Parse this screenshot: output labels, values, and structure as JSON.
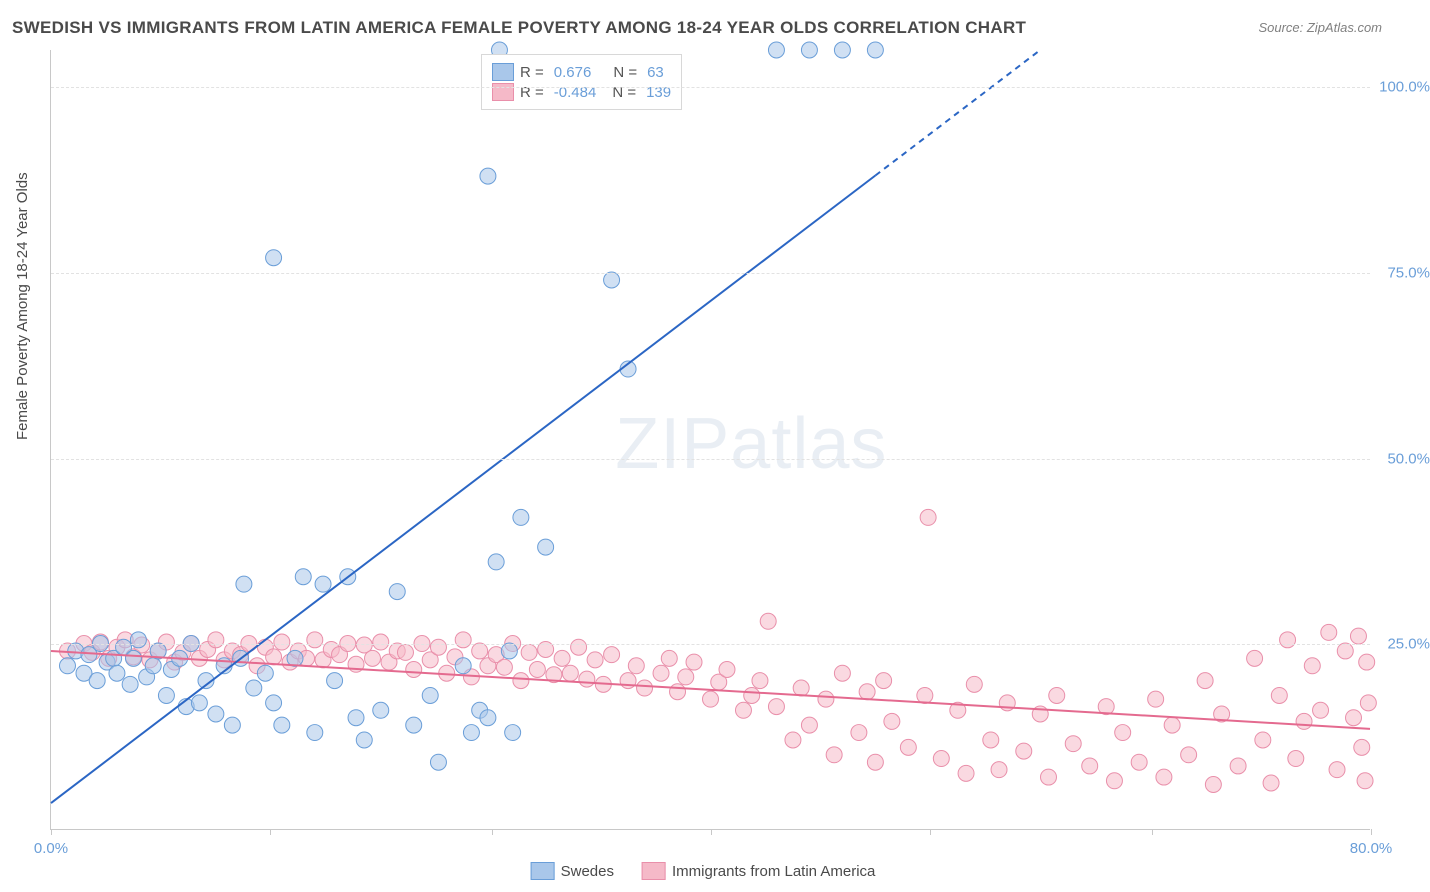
{
  "title": "SWEDISH VS IMMIGRANTS FROM LATIN AMERICA FEMALE POVERTY AMONG 18-24 YEAR OLDS CORRELATION CHART",
  "source": "Source: ZipAtlas.com",
  "watermark": "ZIPatlas",
  "y_axis_label": "Female Poverty Among 18-24 Year Olds",
  "chart": {
    "type": "scatter",
    "background_color": "#ffffff",
    "grid_color": "#e2e2e2",
    "axis_color": "#c8c8c8",
    "tick_label_color": "#6a9ed8",
    "text_color": "#4a4a4a",
    "title_fontsize": 17,
    "label_fontsize": 15,
    "tick_fontsize": 15,
    "xlim": [
      0,
      80
    ],
    "ylim": [
      0,
      105
    ],
    "x_ticks": [
      0,
      13.3,
      26.7,
      40,
      53.3,
      66.7,
      80
    ],
    "x_tick_labels": [
      "0.0%",
      "",
      "",
      "",
      "",
      "",
      "80.0%"
    ],
    "y_ticks": [
      25,
      50,
      75,
      100
    ],
    "y_tick_labels": [
      "25.0%",
      "50.0%",
      "75.0%",
      "100.0%"
    ],
    "marker_radius": 8,
    "marker_opacity": 0.55,
    "series": [
      {
        "name": "Swedes",
        "color_fill": "#a9c7ea",
        "color_stroke": "#6a9ed8",
        "trend_line_color": "#2b66c4",
        "trend_line_width": 2,
        "trend_dashed_from_x": 50,
        "trend_p1": [
          0,
          3.5
        ],
        "trend_p2": [
          60,
          105
        ],
        "R": "0.676",
        "N": "63",
        "points": [
          [
            1,
            22
          ],
          [
            1.5,
            24
          ],
          [
            2,
            21
          ],
          [
            2.3,
            23.5
          ],
          [
            2.8,
            20
          ],
          [
            3,
            25
          ],
          [
            3.4,
            22.5
          ],
          [
            3.8,
            23
          ],
          [
            4,
            21
          ],
          [
            4.4,
            24.5
          ],
          [
            4.8,
            19.5
          ],
          [
            5,
            23
          ],
          [
            5.3,
            25.5
          ],
          [
            5.8,
            20.5
          ],
          [
            6.2,
            22
          ],
          [
            6.5,
            24
          ],
          [
            7,
            18
          ],
          [
            7.3,
            21.5
          ],
          [
            7.8,
            23
          ],
          [
            8.2,
            16.5
          ],
          [
            8.5,
            25
          ],
          [
            9,
            17
          ],
          [
            9.4,
            20
          ],
          [
            10,
            15.5
          ],
          [
            10.5,
            22
          ],
          [
            11,
            14
          ],
          [
            11.5,
            23
          ],
          [
            11.7,
            33
          ],
          [
            12.3,
            19
          ],
          [
            13,
            21
          ],
          [
            13.5,
            17
          ],
          [
            13.5,
            77
          ],
          [
            14,
            14
          ],
          [
            14.8,
            23
          ],
          [
            15.3,
            34
          ],
          [
            16,
            13
          ],
          [
            16.5,
            33
          ],
          [
            17.2,
            20
          ],
          [
            18,
            34
          ],
          [
            18.5,
            15
          ],
          [
            19,
            12
          ],
          [
            20,
            16
          ],
          [
            21,
            32
          ],
          [
            22,
            14
          ],
          [
            23,
            18
          ],
          [
            23.5,
            9
          ],
          [
            25,
            22
          ],
          [
            25.5,
            13
          ],
          [
            26,
            16
          ],
          [
            26.5,
            15
          ],
          [
            27,
            36
          ],
          [
            27.2,
            105
          ],
          [
            27.8,
            24
          ],
          [
            28,
            13
          ],
          [
            28.5,
            42
          ],
          [
            26.5,
            88
          ],
          [
            30,
            38
          ],
          [
            34,
            74
          ],
          [
            35,
            62
          ],
          [
            44,
            105
          ],
          [
            46,
            105
          ],
          [
            48,
            105
          ],
          [
            50,
            105
          ]
        ]
      },
      {
        "name": "Immigrants from Latin America",
        "color_fill": "#f5b9c8",
        "color_stroke": "#e98faa",
        "trend_line_color": "#e46a8f",
        "trend_line_width": 2,
        "trend_p1": [
          0,
          24
        ],
        "trend_p2": [
          80,
          13.5
        ],
        "R": "-0.484",
        "N": "139",
        "points": [
          [
            1,
            24
          ],
          [
            2,
            25
          ],
          [
            2.5,
            23.8
          ],
          [
            3,
            25.2
          ],
          [
            3.5,
            23
          ],
          [
            4,
            24.5
          ],
          [
            4.5,
            25.5
          ],
          [
            5,
            23.2
          ],
          [
            5.5,
            24.8
          ],
          [
            6,
            22.8
          ],
          [
            6.5,
            24
          ],
          [
            7,
            25.2
          ],
          [
            7.5,
            22.5
          ],
          [
            8,
            23.8
          ],
          [
            8.5,
            25
          ],
          [
            9,
            23
          ],
          [
            9.5,
            24.2
          ],
          [
            10,
            25.5
          ],
          [
            10.5,
            22.8
          ],
          [
            11,
            24
          ],
          [
            11.5,
            23.5
          ],
          [
            12,
            25
          ],
          [
            12.5,
            22
          ],
          [
            13,
            24.5
          ],
          [
            13.5,
            23.2
          ],
          [
            14,
            25.2
          ],
          [
            14.5,
            22.5
          ],
          [
            15,
            24
          ],
          [
            15.5,
            23
          ],
          [
            16,
            25.5
          ],
          [
            16.5,
            22.8
          ],
          [
            17,
            24.2
          ],
          [
            17.5,
            23.5
          ],
          [
            18,
            25
          ],
          [
            18.5,
            22.2
          ],
          [
            19,
            24.8
          ],
          [
            19.5,
            23
          ],
          [
            20,
            25.2
          ],
          [
            20.5,
            22.5
          ],
          [
            21,
            24
          ],
          [
            21.5,
            23.8
          ],
          [
            22,
            21.5
          ],
          [
            22.5,
            25
          ],
          [
            23,
            22.8
          ],
          [
            23.5,
            24.5
          ],
          [
            24,
            21
          ],
          [
            24.5,
            23.2
          ],
          [
            25,
            25.5
          ],
          [
            25.5,
            20.5
          ],
          [
            26,
            24
          ],
          [
            26.5,
            22
          ],
          [
            27,
            23.5
          ],
          [
            27.5,
            21.8
          ],
          [
            28,
            25
          ],
          [
            28.5,
            20
          ],
          [
            29,
            23.8
          ],
          [
            29.5,
            21.5
          ],
          [
            30,
            24.2
          ],
          [
            30.5,
            20.8
          ],
          [
            31,
            23
          ],
          [
            31.5,
            21
          ],
          [
            32,
            24.5
          ],
          [
            32.5,
            20.2
          ],
          [
            33,
            22.8
          ],
          [
            33.5,
            19.5
          ],
          [
            34,
            23.5
          ],
          [
            35,
            20
          ],
          [
            35.5,
            22
          ],
          [
            36,
            19
          ],
          [
            37,
            21
          ],
          [
            37.5,
            23
          ],
          [
            38,
            18.5
          ],
          [
            38.5,
            20.5
          ],
          [
            39,
            22.5
          ],
          [
            40,
            17.5
          ],
          [
            40.5,
            19.8
          ],
          [
            41,
            21.5
          ],
          [
            42,
            16
          ],
          [
            42.5,
            18
          ],
          [
            43,
            20
          ],
          [
            43.5,
            28
          ],
          [
            44,
            16.5
          ],
          [
            45,
            12
          ],
          [
            45.5,
            19
          ],
          [
            46,
            14
          ],
          [
            47,
            17.5
          ],
          [
            47.5,
            10
          ],
          [
            48,
            21
          ],
          [
            49,
            13
          ],
          [
            49.5,
            18.5
          ],
          [
            50,
            9
          ],
          [
            50.5,
            20
          ],
          [
            51,
            14.5
          ],
          [
            52,
            11
          ],
          [
            53,
            18
          ],
          [
            53.2,
            42
          ],
          [
            54,
            9.5
          ],
          [
            55,
            16
          ],
          [
            55.5,
            7.5
          ],
          [
            56,
            19.5
          ],
          [
            57,
            12
          ],
          [
            57.5,
            8
          ],
          [
            58,
            17
          ],
          [
            59,
            10.5
          ],
          [
            60,
            15.5
          ],
          [
            60.5,
            7
          ],
          [
            61,
            18
          ],
          [
            62,
            11.5
          ],
          [
            63,
            8.5
          ],
          [
            64,
            16.5
          ],
          [
            64.5,
            6.5
          ],
          [
            65,
            13
          ],
          [
            66,
            9
          ],
          [
            67,
            17.5
          ],
          [
            67.5,
            7
          ],
          [
            68,
            14
          ],
          [
            69,
            10
          ],
          [
            70,
            20
          ],
          [
            70.5,
            6
          ],
          [
            71,
            15.5
          ],
          [
            72,
            8.5
          ],
          [
            73,
            23
          ],
          [
            73.5,
            12
          ],
          [
            74,
            6.2
          ],
          [
            74.5,
            18
          ],
          [
            75,
            25.5
          ],
          [
            75.5,
            9.5
          ],
          [
            76,
            14.5
          ],
          [
            76.5,
            22
          ],
          [
            77,
            16
          ],
          [
            77.5,
            26.5
          ],
          [
            78,
            8
          ],
          [
            78.5,
            24
          ],
          [
            79,
            15
          ],
          [
            79.3,
            26
          ],
          [
            79.5,
            11
          ],
          [
            79.7,
            6.5
          ],
          [
            79.8,
            22.5
          ],
          [
            79.9,
            17
          ]
        ]
      }
    ]
  },
  "legend_stats": {
    "r_label": "R =",
    "n_label": "N ="
  },
  "bottom_legend": {
    "items": [
      "Swedes",
      "Immigrants from Latin America"
    ]
  }
}
